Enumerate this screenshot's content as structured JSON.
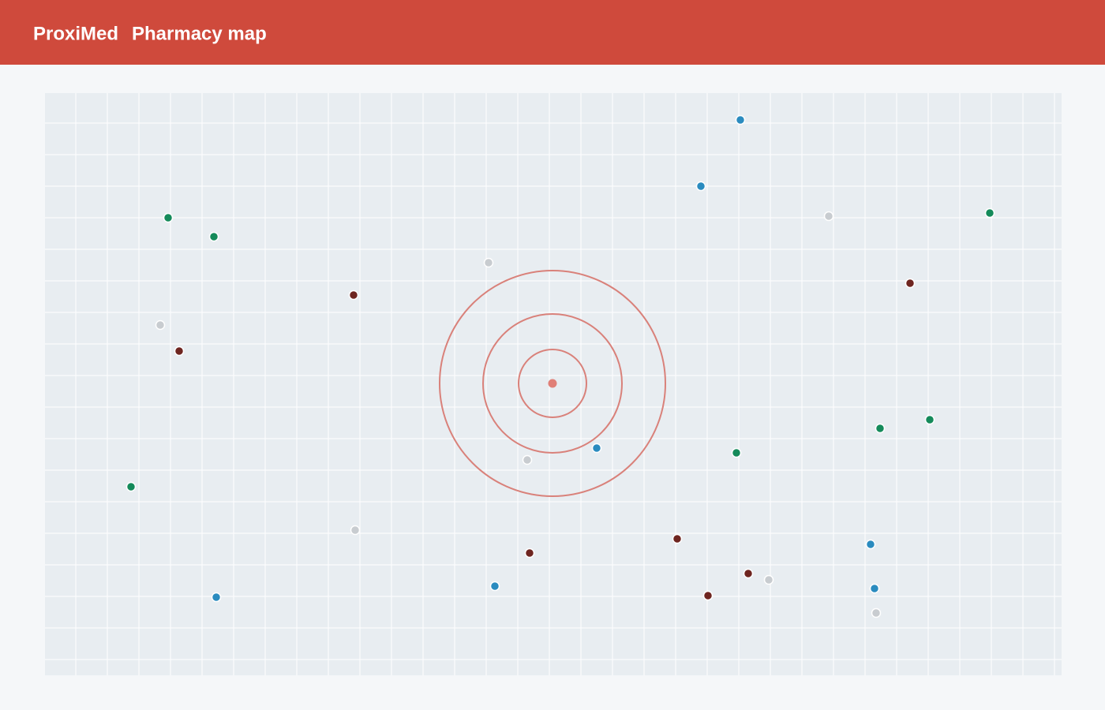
{
  "header": {
    "brand": "ProxiMed",
    "title": "Pharmacy map"
  }
}
